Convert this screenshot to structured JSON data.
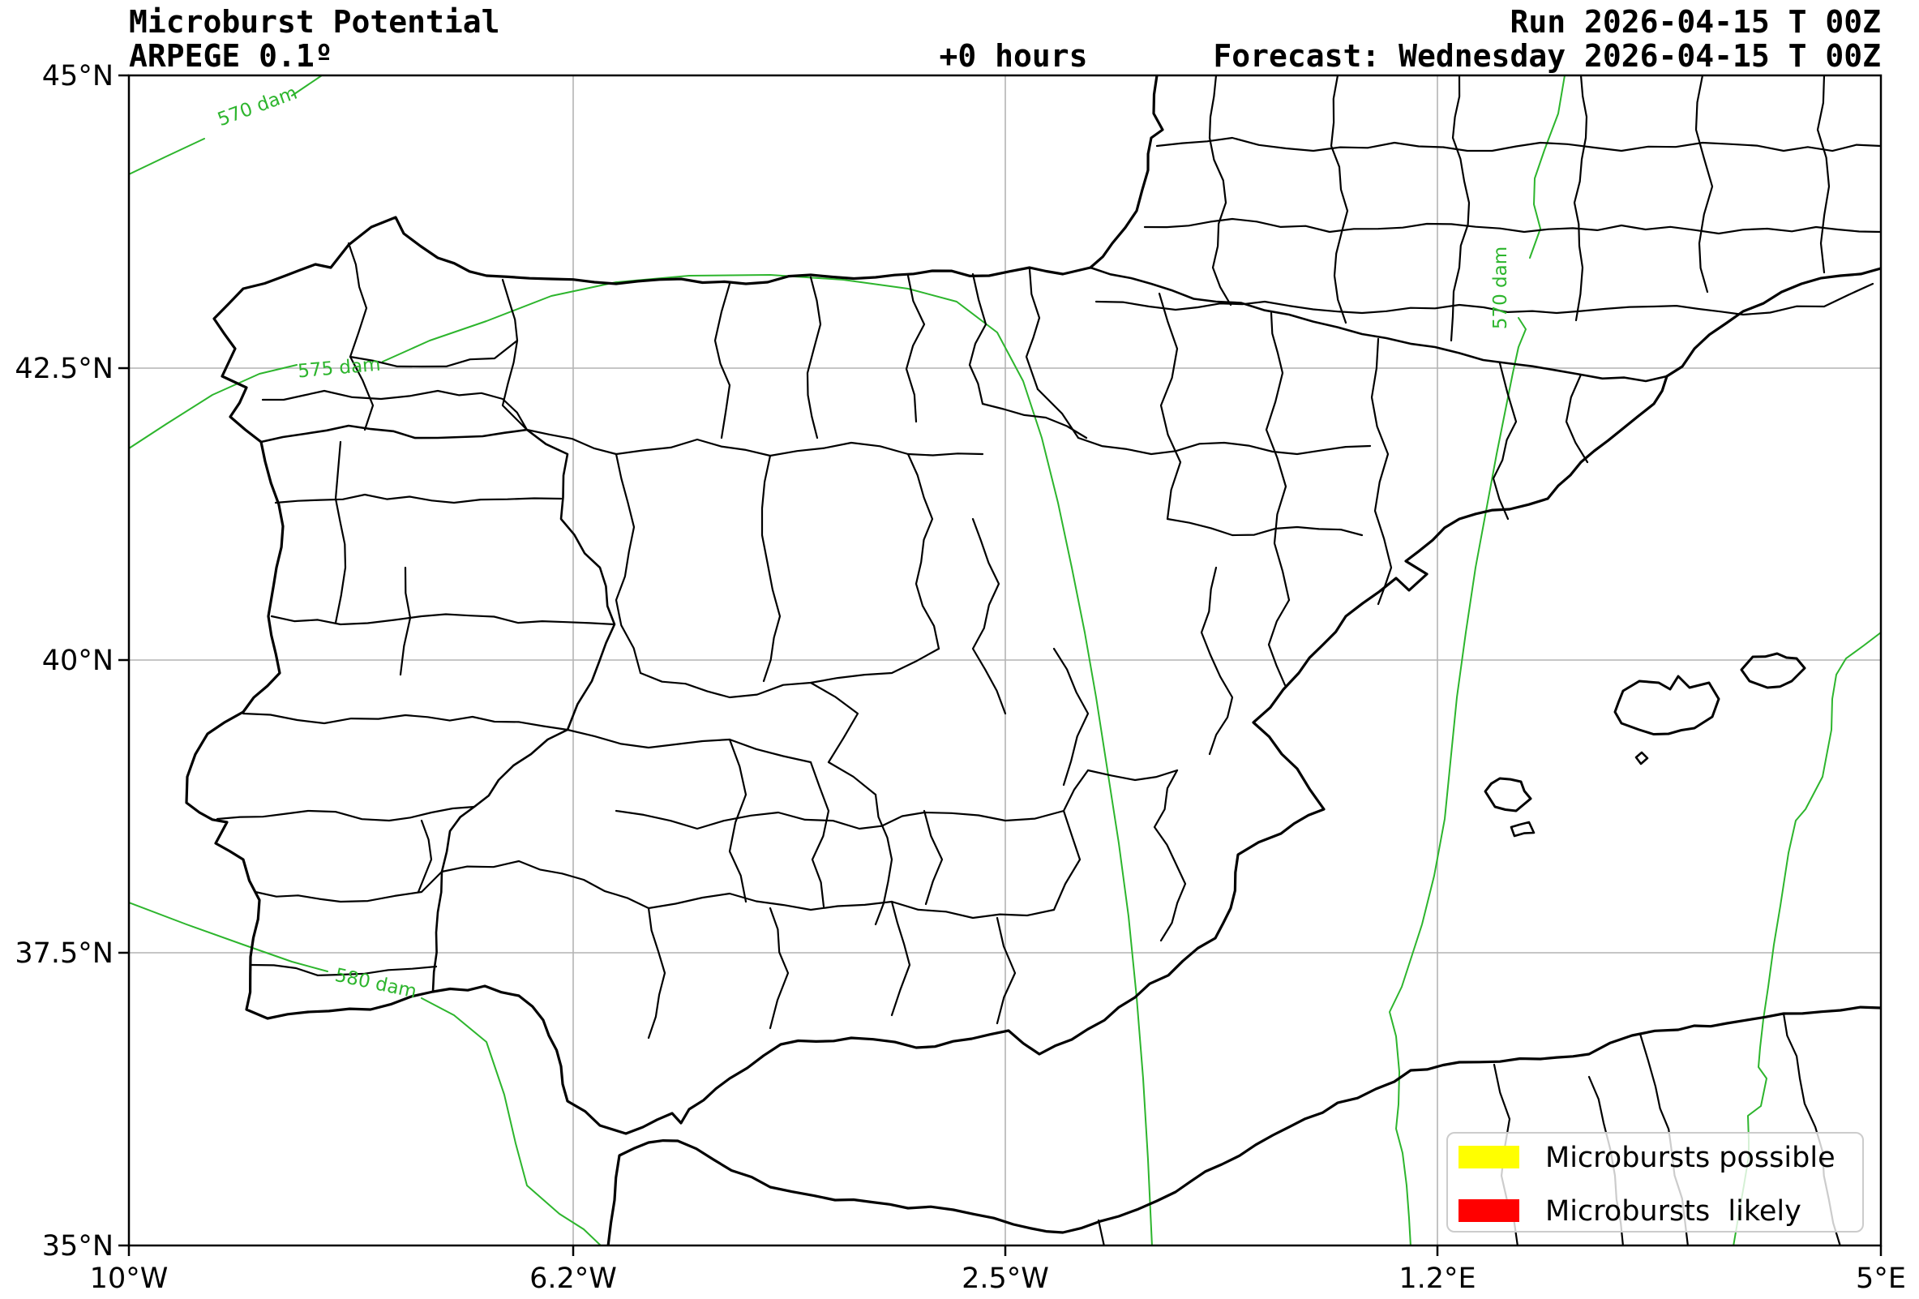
{
  "header": {
    "title_line1": "Microburst Potential",
    "title_line2": "ARPEGE 0.1º",
    "forecast_hour": "+0 hours",
    "run_line": "Run 2026-04-15 T 00Z",
    "forecast_line": "Forecast: Wednesday 2026-04-15 T 00Z"
  },
  "axes": {
    "x_ticks": [
      {
        "label": "10°W"
      },
      {
        "label": "6.2°W"
      },
      {
        "label": "2.5°W"
      },
      {
        "label": "1.2°E"
      },
      {
        "label": "5°E"
      }
    ],
    "y_ticks": [
      {
        "label": "45°N"
      },
      {
        "label": "42.5°N"
      },
      {
        "label": "40°N"
      },
      {
        "label": "37.5°N"
      },
      {
        "label": "35°N"
      }
    ]
  },
  "contours": {
    "unit": "dam",
    "values": [
      570,
      575,
      580,
      570
    ],
    "color": "#2db52d",
    "labels": [
      {
        "text": "570 dam"
      },
      {
        "text": "575 dam"
      },
      {
        "text": "580 dam"
      },
      {
        "text": "570 dam"
      }
    ]
  },
  "legend": {
    "items": [
      {
        "label": "Microbursts possible",
        "color": "#ffff00"
      },
      {
        "label": "Microbursts  likely",
        "color": "#ff0000"
      }
    ]
  }
}
